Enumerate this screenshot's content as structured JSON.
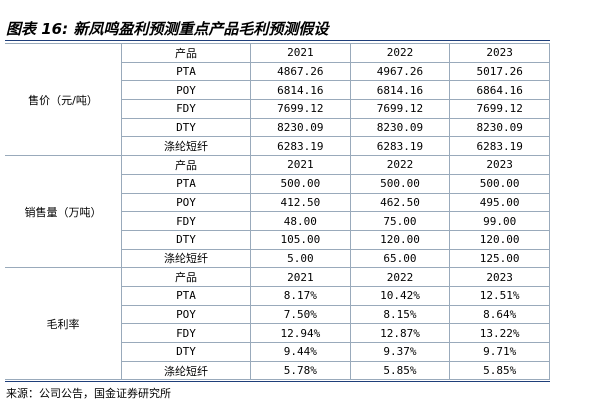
{
  "title": "图表 16: 新凤鸣盈利预测重点产品毛利预测假设",
  "sections": [
    {
      "label": "售价（元/吨）",
      "header": [
        "产品",
        "2021",
        "2022",
        "2023"
      ],
      "rows": [
        [
          "PTA",
          "4867.26",
          "4967.26",
          "5017.26"
        ],
        [
          "POY",
          "6814.16",
          "6814.16",
          "6864.16"
        ],
        [
          "FDY",
          "7699.12",
          "7699.12",
          "7699.12"
        ],
        [
          "DTY",
          "8230.09",
          "8230.09",
          "8230.09"
        ],
        [
          "涤纶短纤",
          "6283.19",
          "6283.19",
          "6283.19"
        ]
      ]
    },
    {
      "label": "销售量（万吨）",
      "header": [
        "产品",
        "2021",
        "2022",
        "2023"
      ],
      "rows": [
        [
          "PTA",
          "500.00",
          "500.00",
          "500.00"
        ],
        [
          "POY",
          "412.50",
          "462.50",
          "495.00"
        ],
        [
          "FDY",
          "48.00",
          "75.00",
          "99.00"
        ],
        [
          "DTY",
          "105.00",
          "120.00",
          "120.00"
        ],
        [
          "涤纶短纤",
          "5.00",
          "65.00",
          "125.00"
        ]
      ]
    },
    {
      "label": "毛利率",
      "header": [
        "产品",
        "2021",
        "2022",
        "2023"
      ],
      "rows": [
        [
          "PTA",
          "8.17%",
          "10.42%",
          "12.51%"
        ],
        [
          "POY",
          "7.50%",
          "8.15%",
          "8.64%"
        ],
        [
          "FDY",
          "12.94%",
          "12.87%",
          "13.22%"
        ],
        [
          "DTY",
          "9.44%",
          "9.37%",
          "9.71%"
        ],
        [
          "涤纶短纤",
          "5.78%",
          "5.85%",
          "5.85%"
        ]
      ]
    }
  ],
  "source": "来源：公司公告，国金证券研究所"
}
